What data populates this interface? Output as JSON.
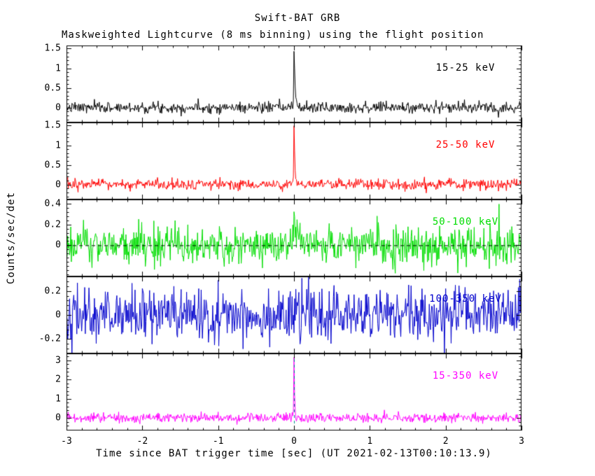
{
  "page": {
    "background": "#ffffff",
    "frame_color": "#000000"
  },
  "chart_data": {
    "type": "line",
    "title": "Swift-BAT GRB",
    "subtitle": "Maskweighted Lightcurve (8 ms binning) using the flight position",
    "xlabel": "Time since BAT trigger time [sec] (UT 2021-02-13T00:10:13.9)",
    "ylabel": "Counts/sec/det",
    "trigger_time_utc": "2021-02-13T00:10:13.9",
    "bin_seconds": 0.008,
    "xlim": [
      -3,
      3
    ],
    "xticks": [
      -3,
      -2,
      -1,
      0,
      1,
      2,
      3
    ],
    "xtick_labels": [
      "-3",
      "-2",
      "-1",
      "0",
      "1",
      "2",
      "3"
    ],
    "x_minor_step": 0.2,
    "grid": false,
    "legend_position": "inside-right-per-panel",
    "panels": [
      {
        "label": "15-25 keV",
        "color": "#000000",
        "ylim": [
          -0.38,
          1.58
        ],
        "yticks": [
          0,
          0.5,
          1,
          1.5
        ],
        "ytick_labels": [
          "0",
          "0.5",
          "1",
          "1.5"
        ],
        "noise_sigma": 0.07,
        "seed": 7,
        "spike": {
          "t0": 0.0,
          "peak": 1.5,
          "tau": 0.015
        },
        "zero_dash": false,
        "vline": null
      },
      {
        "label": "25-50 keV",
        "color": "#ff0000",
        "ylim": [
          -0.38,
          1.58
        ],
        "yticks": [
          0,
          0.5,
          1,
          1.5
        ],
        "ytick_labels": [
          "0",
          "0.5",
          "1",
          "1.5"
        ],
        "noise_sigma": 0.07,
        "seed": 13,
        "spike": {
          "t0": 0.0,
          "peak": 1.45,
          "tau": 0.012
        },
        "zero_dash": false,
        "vline": null
      },
      {
        "label": "50-100 keV",
        "color": "#00dd00",
        "ylim": [
          -0.3,
          0.44
        ],
        "yticks": [
          0,
          0.2,
          0.4
        ],
        "ytick_labels": [
          "0",
          "0.2",
          "0.4"
        ],
        "noise_sigma": 0.095,
        "seed": 21,
        "spike": {
          "t0": 0.0,
          "peak": 0.32,
          "tau": 0.04
        },
        "zero_dash": true,
        "vline": null
      },
      {
        "label": "100-350 keV",
        "color": "#0000cc",
        "ylim": [
          -0.32,
          0.32
        ],
        "yticks": [
          -0.2,
          0,
          0.2
        ],
        "ytick_labels": [
          "-0.2",
          "0",
          "0.2"
        ],
        "noise_sigma": 0.11,
        "seed": 42,
        "spike": null,
        "zero_dash": false,
        "vline": null
      },
      {
        "label": "15-350 keV",
        "color": "#ff00ff",
        "ylim": [
          -0.65,
          3.35
        ],
        "yticks": [
          0,
          1,
          2,
          3
        ],
        "ytick_labels": [
          "0",
          "1",
          "2",
          "3"
        ],
        "noise_sigma": 0.13,
        "seed": 99,
        "spike": {
          "t0": 0.0,
          "peak": 3.05,
          "tau": 0.01
        },
        "zero_dash": false,
        "vline": {
          "t": 0.0,
          "color": "#009090"
        }
      }
    ]
  }
}
